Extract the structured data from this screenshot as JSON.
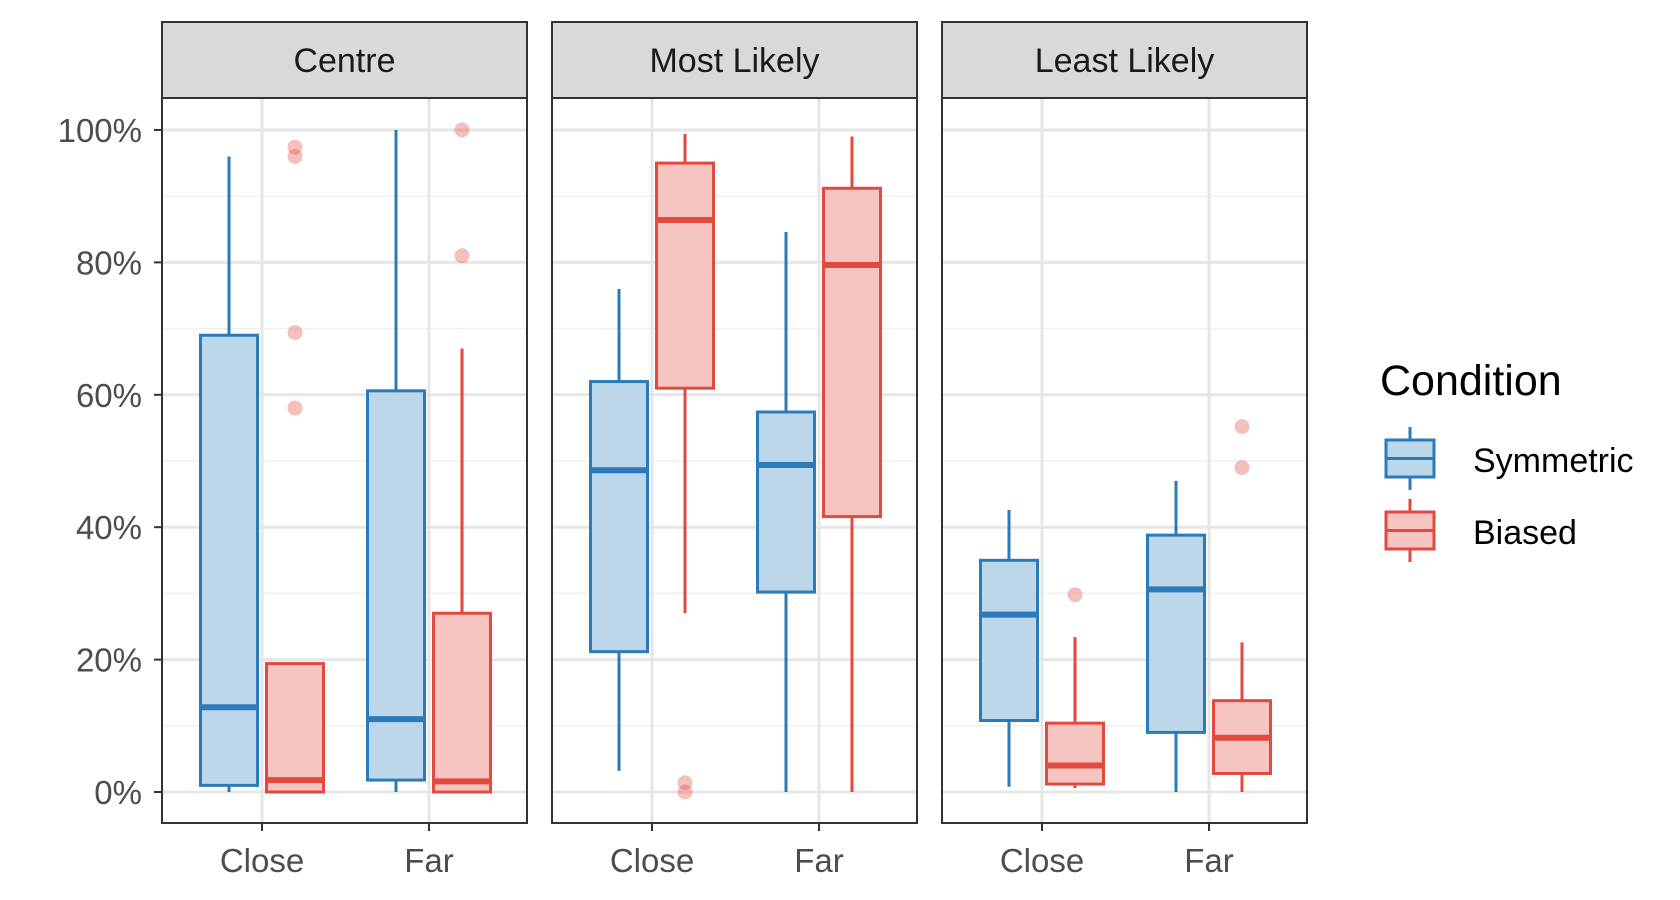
{
  "chart_data": {
    "type": "boxplot",
    "facets": [
      "Centre",
      "Most Likely",
      "Least Likely"
    ],
    "categories": [
      "Close",
      "Far"
    ],
    "ylim": [
      0,
      100
    ],
    "yticks": [
      0,
      20,
      40,
      60,
      80,
      100
    ],
    "ytick_labels": [
      "0%",
      "20%",
      "40%",
      "60%",
      "80%",
      "100%"
    ],
    "grid": true,
    "legend": {
      "title": "Condition",
      "position": "right",
      "entries": [
        "Symmetric",
        "Biased"
      ]
    },
    "colors": {
      "Symmetric": {
        "line": "#2b7bba",
        "fill": "#bdd7ea"
      },
      "Biased": {
        "line": "#e34a3f",
        "fill": "#f6c4c1"
      }
    },
    "series": [
      {
        "name": "Symmetric",
        "boxes": [
          {
            "facet": "Centre",
            "category": "Close",
            "min": 0,
            "q1": 1,
            "median": 12.8,
            "q3": 69,
            "max": 96,
            "outliers": []
          },
          {
            "facet": "Centre",
            "category": "Far",
            "min": 0,
            "q1": 1.8,
            "median": 11,
            "q3": 60.6,
            "max": 100,
            "outliers": []
          },
          {
            "facet": "Most Likely",
            "category": "Close",
            "min": 3.2,
            "q1": 21.2,
            "median": 48.6,
            "q3": 62,
            "max": 76,
            "outliers": []
          },
          {
            "facet": "Most Likely",
            "category": "Far",
            "min": 0,
            "q1": 30.2,
            "median": 49.4,
            "q3": 57.4,
            "max": 84.6,
            "outliers": []
          },
          {
            "facet": "Least Likely",
            "category": "Close",
            "min": 0.8,
            "q1": 10.8,
            "median": 26.8,
            "q3": 35,
            "max": 42.6,
            "outliers": []
          },
          {
            "facet": "Least Likely",
            "category": "Far",
            "min": 0,
            "q1": 9,
            "median": 30.6,
            "q3": 38.8,
            "max": 47,
            "outliers": []
          }
        ]
      },
      {
        "name": "Biased",
        "boxes": [
          {
            "facet": "Centre",
            "category": "Close",
            "min": 0,
            "q1": 0,
            "median": 1.8,
            "q3": 19.4,
            "max": 19.4,
            "outliers": [
              97.4,
              96,
              69.4,
              58
            ]
          },
          {
            "facet": "Centre",
            "category": "Far",
            "min": 0,
            "q1": 0,
            "median": 1.6,
            "q3": 27,
            "max": 67,
            "outliers": [
              100,
              81
            ]
          },
          {
            "facet": "Most Likely",
            "category": "Close",
            "min": 27,
            "q1": 61,
            "median": 86.4,
            "q3": 95,
            "max": 99.4,
            "outliers": [
              1.4,
              0
            ]
          },
          {
            "facet": "Most Likely",
            "category": "Far",
            "min": 0,
            "q1": 41.6,
            "median": 79.6,
            "q3": 91.2,
            "max": 99,
            "outliers": []
          },
          {
            "facet": "Least Likely",
            "category": "Close",
            "min": 0.6,
            "q1": 1.2,
            "median": 4,
            "q3": 10.4,
            "max": 23.4,
            "outliers": [
              29.8
            ]
          },
          {
            "facet": "Least Likely",
            "category": "Far",
            "min": 0,
            "q1": 2.8,
            "median": 8.2,
            "q3": 13.8,
            "max": 22.6,
            "outliers": [
              55.2,
              49
            ]
          }
        ]
      }
    ]
  }
}
